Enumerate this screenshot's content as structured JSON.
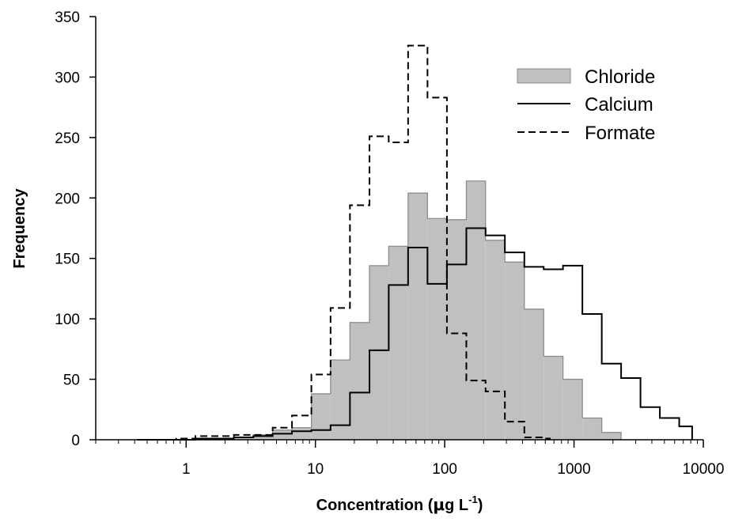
{
  "chart_data": {
    "type": "bar",
    "xlabel_main": "Concentration (",
    "xlabel_unit_mu": "μ",
    "xlabel_unit_rest": "g L",
    "xlabel_sup": "-1",
    "xlabel_close": ")",
    "ylabel": "Frequency",
    "xscale": "log",
    "xlim": [
      0.2,
      10000
    ],
    "ylim": [
      0,
      350
    ],
    "x_ticks": [
      1,
      10,
      100,
      1000,
      10000
    ],
    "x_tick_labels": [
      "1",
      "10",
      "100",
      "1000",
      "10000"
    ],
    "y_ticks": [
      0,
      50,
      100,
      150,
      200,
      250,
      300,
      350
    ],
    "grid": false,
    "legend_position": "top-right",
    "colors": {
      "chloride_fill": "#c0c0c0",
      "chloride_edge": "#8c8c8c",
      "lines": "#000000"
    },
    "series": [
      {
        "name": "Chloride",
        "style": "filled-histogram",
        "bin_edges": [
          0.42,
          0.59,
          0.84,
          1.18,
          1.66,
          2.34,
          3.31,
          4.67,
          6.59,
          9.31,
          13.1,
          18.5,
          26.2,
          36.9,
          52.1,
          73.6,
          104,
          147,
          207,
          292,
          413,
          583,
          822,
          1161,
          1639,
          2314
        ],
        "values": [
          0,
          0,
          0,
          1,
          1,
          2,
          4,
          8,
          10,
          38,
          66,
          97,
          144,
          160,
          204,
          183,
          182,
          214,
          165,
          147,
          108,
          69,
          50,
          18,
          6
        ]
      },
      {
        "name": "Calcium",
        "style": "solid-step",
        "bin_edges": [
          0.42,
          0.59,
          0.84,
          1.18,
          1.66,
          2.34,
          3.31,
          4.67,
          6.59,
          9.31,
          13.1,
          18.5,
          26.2,
          36.9,
          52.1,
          73.6,
          104,
          147,
          207,
          292,
          413,
          583,
          822,
          1161,
          1639,
          2314,
          3267,
          4613,
          6513,
          8196
        ],
        "values": [
          0,
          0,
          0,
          1,
          1,
          2,
          3,
          5,
          7,
          8,
          12,
          39,
          74,
          128,
          159,
          129,
          145,
          175,
          169,
          155,
          143,
          141,
          144,
          104,
          63,
          51,
          27,
          18,
          11
        ]
      },
      {
        "name": "Formate",
        "style": "dashed-step",
        "bin_edges": [
          0.42,
          0.59,
          0.84,
          1.18,
          1.66,
          2.34,
          3.31,
          4.67,
          6.59,
          9.31,
          13.1,
          18.5,
          26.2,
          36.9,
          52.1,
          73.6,
          104,
          147,
          207,
          292,
          413,
          583,
          650
        ],
        "values": [
          0,
          0,
          1,
          3,
          3,
          4,
          4,
          10,
          20,
          54,
          109,
          194,
          251,
          246,
          326,
          283,
          88,
          49,
          40,
          15,
          2,
          1
        ]
      }
    ]
  }
}
